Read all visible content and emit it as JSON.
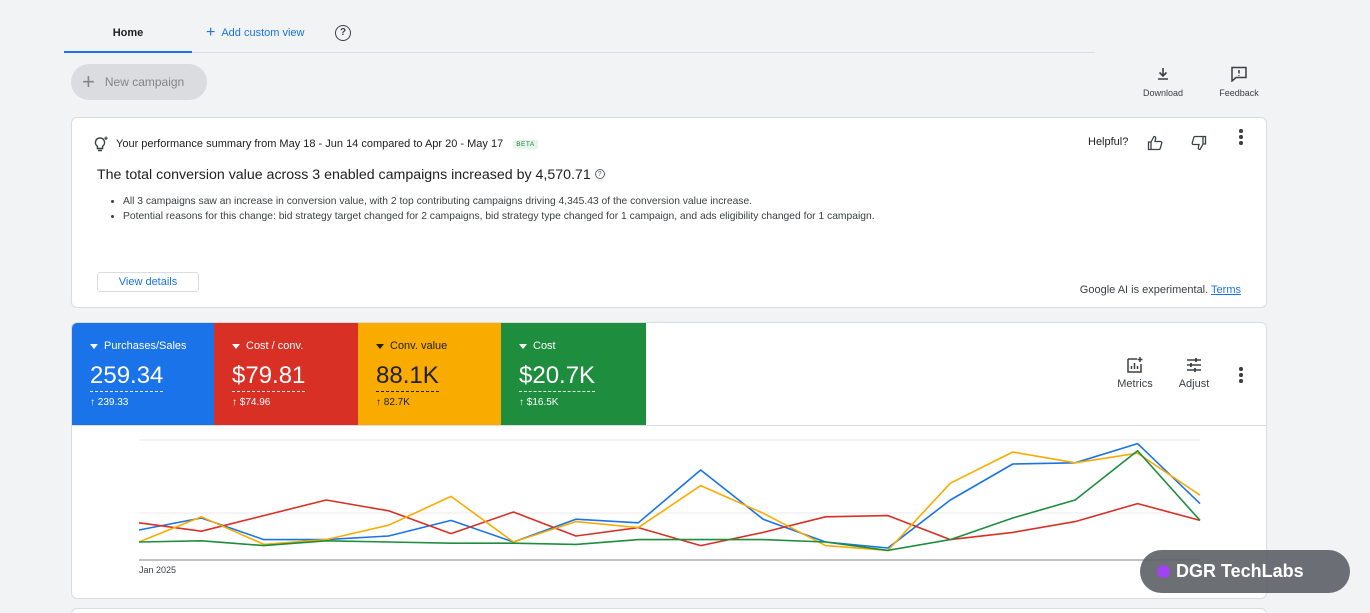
{
  "tabs": {
    "home": "Home",
    "add_custom_view": "Add custom view"
  },
  "toolbar": {
    "new_campaign": "New campaign",
    "download": "Download",
    "feedback": "Feedback"
  },
  "summary": {
    "heading": "Your performance summary from May 18 - Jun 14 compared to Apr 20 - May 17",
    "beta": "BETA",
    "helpful": "Helpful?",
    "title": "The total conversion value across 3 enabled campaigns increased by 4,570.71",
    "bullets": [
      "All 3 campaigns saw an increase in conversion value, with 2 top contributing campaigns driving 4,345.43 of the conversion value increase.",
      "Potential reasons for this change: bid strategy target changed for 2 campaigns, bid strategy type changed for 1 campaign, and ads eligibility changed for 1 campaign."
    ],
    "view_details": "View details",
    "ai_note": "Google AI is experimental.",
    "terms": "Terms"
  },
  "metrics": [
    {
      "name": "Purchases/Sales",
      "value": "259.34",
      "delta": "↑ 239.33",
      "color": "#1a73e8"
    },
    {
      "name": "Cost / conv.",
      "value": "$79.81",
      "delta": "↑ $74.96",
      "color": "#d93025"
    },
    {
      "name": "Conv. value",
      "value": "88.1K",
      "delta": "↑ 82.7K",
      "color": "#f9ab00"
    },
    {
      "name": "Cost",
      "value": "$20.7K",
      "delta": "↑ $16.5K",
      "color": "#1e8e3e"
    }
  ],
  "metric_actions": {
    "metrics": "Metrics",
    "adjust": "Adjust"
  },
  "chart": {
    "x_label": "Jan 2025"
  },
  "chart_data": {
    "type": "line",
    "x_start_label": "Jan 2025",
    "ylim": [
      0,
      1
    ],
    "series": [
      {
        "name": "Purchases/Sales",
        "color": "#1a73e8",
        "values": [
          0.25,
          0.35,
          0.17,
          0.17,
          0.2,
          0.33,
          0.15,
          0.34,
          0.31,
          0.75,
          0.34,
          0.15,
          0.1,
          0.5,
          0.8,
          0.81,
          0.97,
          0.47
        ]
      },
      {
        "name": "Cost / conv.",
        "color": "#d93025",
        "values": [
          0.31,
          0.24,
          0.37,
          0.5,
          0.41,
          0.22,
          0.4,
          0.2,
          0.27,
          0.12,
          0.23,
          0.36,
          0.37,
          0.17,
          0.23,
          0.32,
          0.47,
          0.33
        ]
      },
      {
        "name": "Conv. value",
        "color": "#f9ab00",
        "values": [
          0.15,
          0.36,
          0.13,
          0.17,
          0.29,
          0.53,
          0.15,
          0.32,
          0.27,
          0.62,
          0.39,
          0.12,
          0.08,
          0.64,
          0.9,
          0.81,
          0.89,
          0.54
        ]
      },
      {
        "name": "Cost",
        "color": "#1e8e3e",
        "values": [
          0.15,
          0.16,
          0.12,
          0.16,
          0.15,
          0.14,
          0.14,
          0.13,
          0.17,
          0.17,
          0.17,
          0.15,
          0.08,
          0.17,
          0.35,
          0.5,
          0.91,
          0.33
        ]
      }
    ]
  },
  "watermark": "DGR TechLabs"
}
